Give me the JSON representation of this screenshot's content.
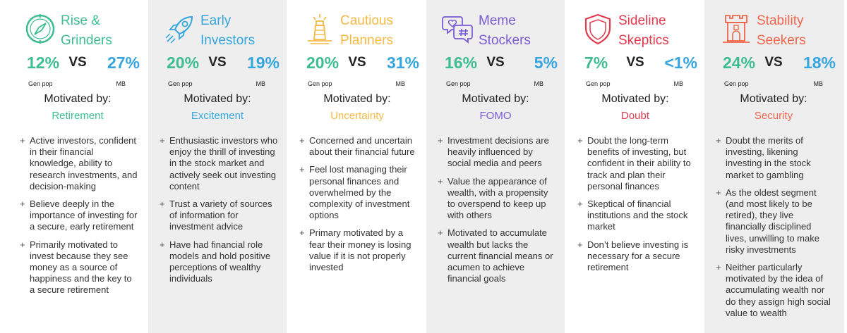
{
  "colors": {
    "green": "#3ebd93",
    "blue": "#35a6df",
    "yellow": "#f6b945",
    "purple": "#7a5bd6",
    "red": "#e03a4c",
    "orange": "#f0664b"
  },
  "segments": [
    {
      "name": "Rise &\nGrinders",
      "icon": "compass-icon",
      "color": "#3ebd93",
      "gen_pop_pct": "12%",
      "mb_pct": "27%",
      "vs": "VS",
      "gen_pop_label": "Gen pop",
      "mb_label": "MB",
      "motivated_label": "Motivated by:",
      "motive": "Retirement",
      "bullets": [
        "Active investors, confident in their financial knowledge, ability to research investments, and decision-making",
        "Believe deeply in the importance of investing for a secure, early retirement",
        "Primarily motivated to invest because they see money as a source of happiness and the key to a secure retirement"
      ]
    },
    {
      "name": "Early\nInvestors",
      "icon": "rocket-icon",
      "color": "#35a6df",
      "gen_pop_pct": "20%",
      "mb_pct": "19%",
      "vs": "VS",
      "gen_pop_label": "Gen pop",
      "mb_label": "MB",
      "motivated_label": "Motivated by:",
      "motive": "Excitement",
      "bullets": [
        "Enthusiastic investors who enjoy the thrill of investing in the stock market and actively seek out investing content",
        "Trust a variety of sources of information for investment advice",
        "Have had financial role models and hold positive perceptions of wealthy individuals"
      ]
    },
    {
      "name": "Cautious\nPlanners",
      "icon": "lighthouse-icon",
      "color": "#f6b945",
      "gen_pop_pct": "20%",
      "mb_pct": "31%",
      "vs": "VS",
      "gen_pop_label": "Gen pop",
      "mb_label": "MB",
      "motivated_label": "Motivated by:",
      "motive": "Uncertainty",
      "bullets": [
        "Concerned and uncertain about their financial future",
        "Feel lost managing their personal finances and overwhelmed by the complexity of investment options",
        "Primary motivated by a fear their money is losing value if it is not properly invested"
      ]
    },
    {
      "name": "Meme\nStockers",
      "icon": "speech-bubbles-icon",
      "color": "#7a5bd6",
      "gen_pop_pct": "16%",
      "mb_pct": "5%",
      "vs": "VS",
      "gen_pop_label": "Gen pop",
      "mb_label": "MB",
      "motivated_label": "Motivated by:",
      "motive": "FOMO",
      "bullets": [
        "Investment decisions are heavily influenced by social media and peers",
        "Value the appearance of wealth, with a propensity to overspend to keep up with others",
        "Motivated to accumulate wealth but lacks the current financial means or acumen to achieve financial goals"
      ]
    },
    {
      "name": "Sideline\nSkeptics",
      "icon": "shield-icon",
      "color": "#e03a4c",
      "gen_pop_pct": "7%",
      "mb_pct": "<1%",
      "vs": "VS",
      "gen_pop_label": "Gen pop",
      "mb_label": "MB",
      "motivated_label": "Motivated by:",
      "motive": "Doubt",
      "bullets": [
        "Doubt the long-term benefits of investing, but confident in their ability to track and plan their personal finances",
        "Skeptical of financial institutions and the stock market",
        "Don’t believe investing is necessary for a secure retirement"
      ]
    },
    {
      "name": "Stability\nSeekers",
      "icon": "castle-tower-icon",
      "color": "#f0664b",
      "gen_pop_pct": "24%",
      "mb_pct": "18%",
      "vs": "VS",
      "gen_pop_label": "Gen pop",
      "mb_label": "MB",
      "motivated_label": "Motivated by:",
      "motive": "Security",
      "bullets": [
        "Doubt the merits of investing, likening investing in the stock market to gambling",
        "As the oldest segment (and most likely to be retired), they live financially disciplined lives, unwilling to make risky investments",
        "Neither particularly motivated by the idea of accumulating wealth nor do they assign high social value to wealth"
      ]
    }
  ]
}
